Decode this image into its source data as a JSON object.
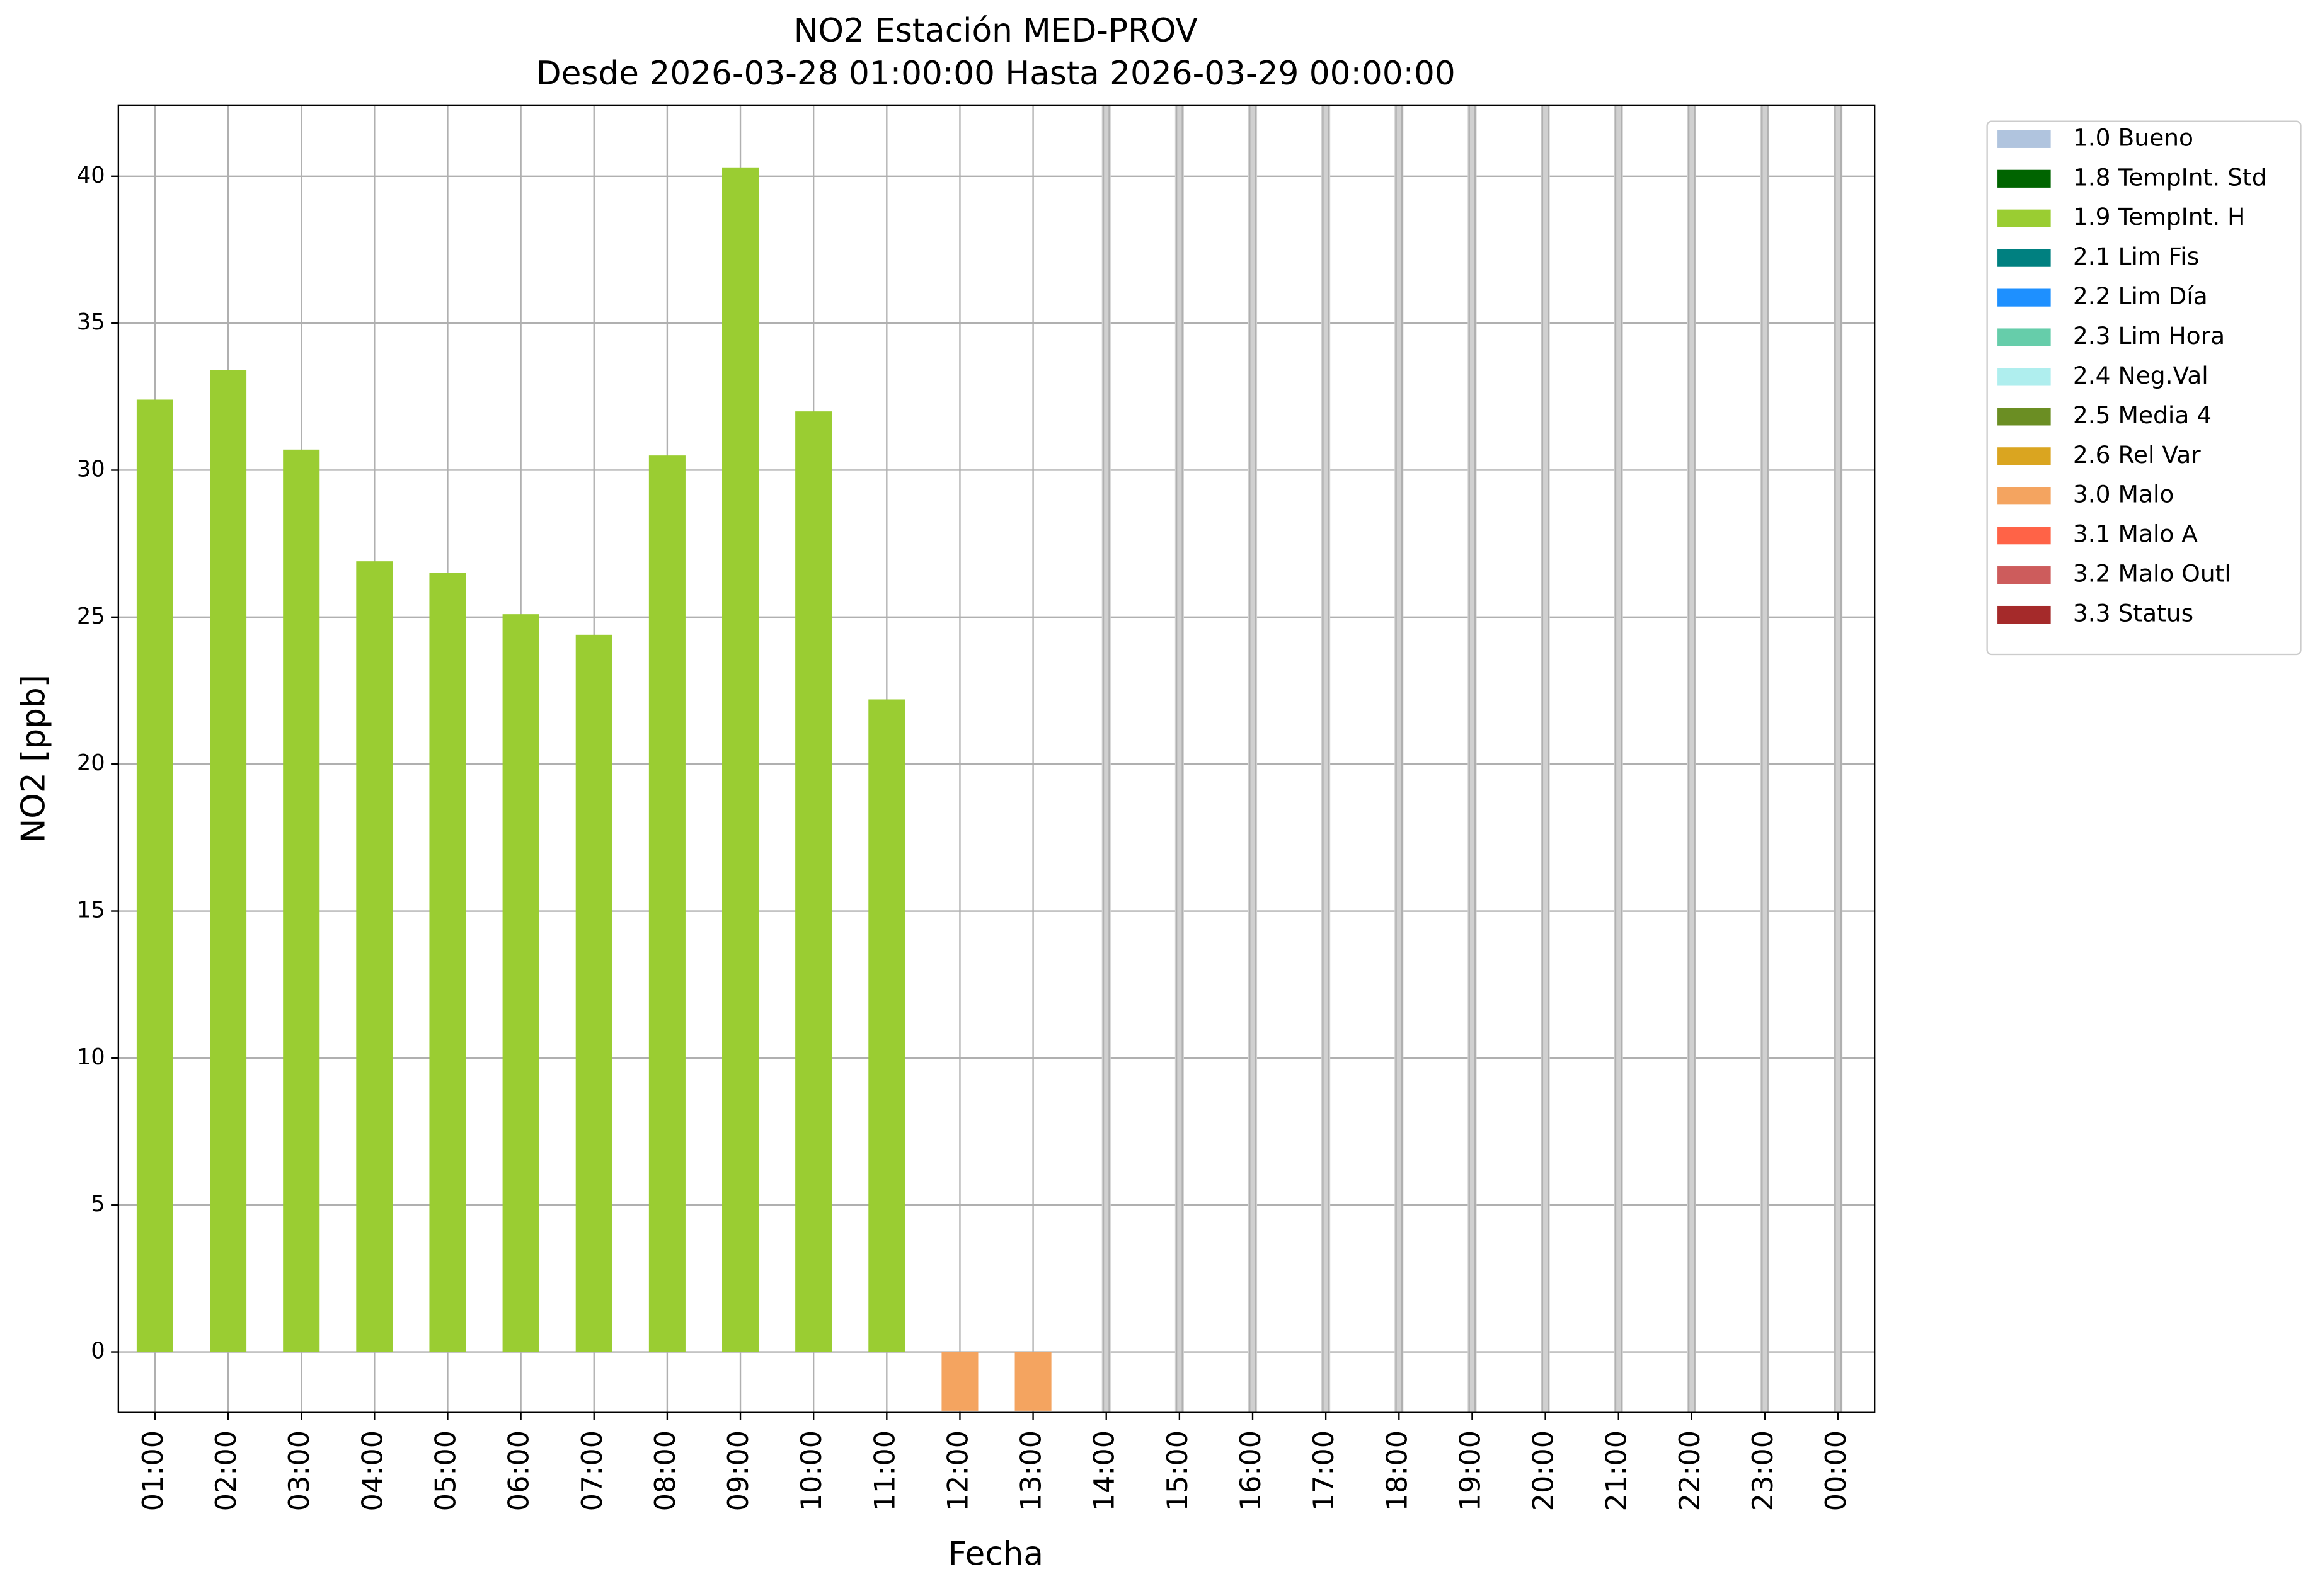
{
  "chart_data": {
    "type": "bar",
    "title": "NO2 Estación MED-PROV",
    "subtitle": "Desde 2026-03-28 01:00:00 Hasta 2026-03-29 00:00:00",
    "x_label": "Fecha",
    "y_label": "NO2 [ppb]",
    "categories": [
      "01:00",
      "02:00",
      "03:00",
      "04:00",
      "05:00",
      "06:00",
      "07:00",
      "08:00",
      "09:00",
      "10:00",
      "11:00",
      "12:00",
      "13:00",
      "14:00",
      "15:00",
      "16:00",
      "17:00",
      "18:00",
      "19:00",
      "20:00",
      "21:00",
      "22:00",
      "23:00",
      "00:00"
    ],
    "series": [
      {
        "name": "1.0 Bueno",
        "color": "#b0c4de",
        "values": [
          null,
          null,
          null,
          null,
          null,
          null,
          null,
          null,
          null,
          null,
          null,
          null,
          null,
          null,
          null,
          null,
          null,
          null,
          null,
          null,
          null,
          null,
          null,
          null
        ]
      },
      {
        "name": "1.8 TempInt. Std",
        "color": "#006400",
        "values": [
          null,
          null,
          null,
          null,
          null,
          null,
          null,
          null,
          null,
          null,
          null,
          null,
          null,
          null,
          null,
          null,
          null,
          null,
          null,
          null,
          null,
          null,
          null,
          null
        ]
      },
      {
        "name": "1.9 TempInt. H",
        "color": "#9acd32",
        "values": [
          32.4,
          33.4,
          30.7,
          26.9,
          26.5,
          25.1,
          24.4,
          30.5,
          40.3,
          32.0,
          22.2,
          null,
          null,
          null,
          null,
          null,
          null,
          null,
          null,
          null,
          null,
          null,
          null,
          null
        ]
      },
      {
        "name": "2.1 Lim Fis",
        "color": "#008080",
        "values": [
          null,
          null,
          null,
          null,
          null,
          null,
          null,
          null,
          null,
          null,
          null,
          null,
          null,
          null,
          null,
          null,
          null,
          null,
          null,
          null,
          null,
          null,
          null,
          null
        ]
      },
      {
        "name": "2.2 Lim Día",
        "color": "#1e90ff",
        "values": [
          null,
          null,
          null,
          null,
          null,
          null,
          null,
          null,
          null,
          null,
          null,
          null,
          null,
          null,
          null,
          null,
          null,
          null,
          null,
          null,
          null,
          null,
          null,
          null
        ]
      },
      {
        "name": "2.3 Lim Hora",
        "color": "#66cdaa",
        "values": [
          null,
          null,
          null,
          null,
          null,
          null,
          null,
          null,
          null,
          null,
          null,
          null,
          null,
          null,
          null,
          null,
          null,
          null,
          null,
          null,
          null,
          null,
          null,
          null
        ]
      },
      {
        "name": "2.4 Neg.Val",
        "color": "#afeeee",
        "values": [
          null,
          null,
          null,
          null,
          null,
          null,
          null,
          null,
          null,
          null,
          null,
          null,
          null,
          null,
          null,
          null,
          null,
          null,
          null,
          null,
          null,
          null,
          null,
          null
        ]
      },
      {
        "name": "2.5 Media 4",
        "color": "#6b8e23",
        "values": [
          null,
          null,
          null,
          null,
          null,
          null,
          null,
          null,
          null,
          null,
          null,
          null,
          null,
          null,
          null,
          null,
          null,
          null,
          null,
          null,
          null,
          null,
          null,
          null
        ]
      },
      {
        "name": "2.6 Rel Var",
        "color": "#daa520",
        "values": [
          null,
          null,
          null,
          null,
          null,
          null,
          null,
          null,
          null,
          null,
          null,
          null,
          null,
          null,
          null,
          null,
          null,
          null,
          null,
          null,
          null,
          null,
          null,
          null
        ]
      },
      {
        "name": "3.0 Malo",
        "color": "#f4a460",
        "values": [
          null,
          null,
          null,
          null,
          null,
          null,
          null,
          null,
          null,
          null,
          null,
          -2,
          -2,
          null,
          null,
          null,
          null,
          null,
          null,
          null,
          null,
          null,
          null,
          null
        ]
      },
      {
        "name": "3.1 Malo A",
        "color": "#ff6347",
        "values": [
          null,
          null,
          null,
          null,
          null,
          null,
          null,
          null,
          null,
          null,
          null,
          null,
          null,
          null,
          null,
          null,
          null,
          null,
          null,
          null,
          null,
          null,
          null,
          null
        ]
      },
      {
        "name": "3.2 Malo Outl",
        "color": "#cd5c5c",
        "values": [
          null,
          null,
          null,
          null,
          null,
          null,
          null,
          null,
          null,
          null,
          null,
          null,
          null,
          null,
          null,
          null,
          null,
          null,
          null,
          null,
          null,
          null,
          null,
          null
        ]
      },
      {
        "name": "3.3 Status",
        "color": "#a52a2a",
        "values": [
          null,
          null,
          null,
          null,
          null,
          null,
          null,
          null,
          null,
          null,
          null,
          null,
          null,
          null,
          null,
          null,
          null,
          null,
          null,
          null,
          null,
          null,
          null,
          null
        ]
      }
    ],
    "ylim": [
      -2.06,
      42.42
    ],
    "yticks": [
      0,
      5,
      10,
      15,
      20,
      25,
      30,
      35,
      40
    ],
    "grid": true,
    "legend": "outside right"
  }
}
